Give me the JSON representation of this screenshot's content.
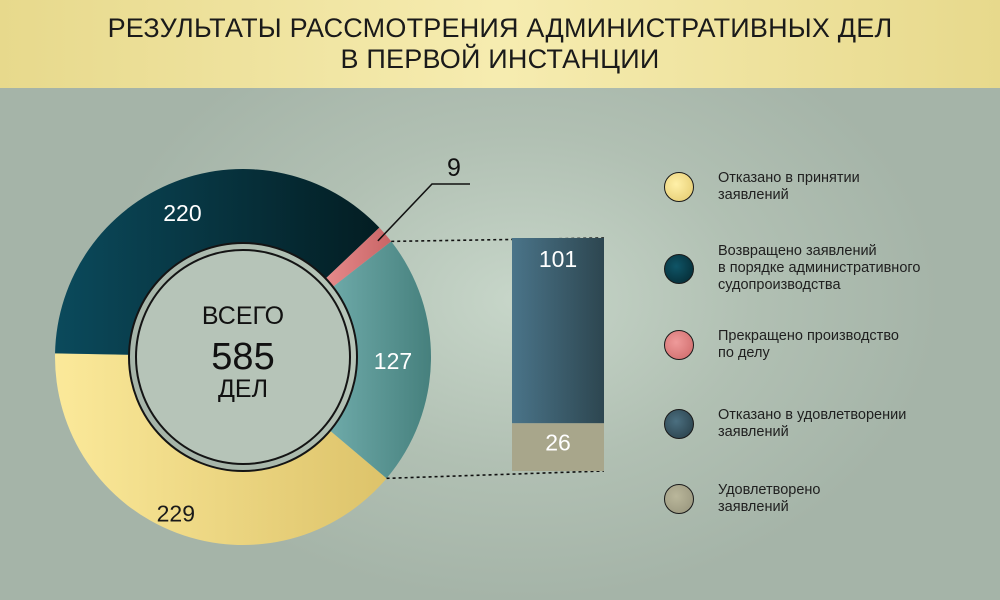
{
  "title": {
    "line1": "РЕЗУЛЬТАТЫ РАССМОТРЕНИЯ АДМИНИСТРАТИВНЫХ ДЕЛ",
    "line2": "В ПЕРВОЙ ИНСТАНЦИИ"
  },
  "center": {
    "label_top": "ВСЕГО",
    "total": "585",
    "label_bottom": "ДЕЛ"
  },
  "chart_data": [
    {
      "type": "pie",
      "variant": "donut",
      "total": 585,
      "slices": [
        {
          "label": "Отказано в принятии заявлений",
          "value": 229,
          "color": "#f3e08a"
        },
        {
          "label": "Возвращено заявлений в порядке административного судопроизводства",
          "value": 220,
          "color": "#0c4656"
        },
        {
          "label": "Прекращено производство по делу",
          "value": 9,
          "color": "#d77a7b"
        },
        {
          "label": "Отказано в удовлетворении заявлений / Удовлетворено заявлений",
          "value": 127,
          "color": "#5e9c9a"
        }
      ]
    },
    {
      "type": "bar",
      "variant": "stacked-breakout",
      "total": 127,
      "segments": [
        {
          "label": "Отказано в удовлетворении заявлений",
          "value": 101,
          "color": "#3f6378"
        },
        {
          "label": "Удовлетворено заявлений",
          "value": 26,
          "color": "#a8a68b"
        }
      ]
    }
  ],
  "legend": [
    {
      "text": "Отказано в принятии\nзаявлений",
      "color": "#f3e08a"
    },
    {
      "text": "Возвращено заявлений\nв порядке административного\nсудопроизводства",
      "color": "#0c4656"
    },
    {
      "text": "Прекращено производство\nпо делу",
      "color": "#d77a7b"
    },
    {
      "text": "Отказано в удовлетворении\nзаявлений",
      "color": "#3b5a66"
    },
    {
      "text": "Удовлетворено\nзаявлений",
      "color": "#a9a68e"
    }
  ]
}
